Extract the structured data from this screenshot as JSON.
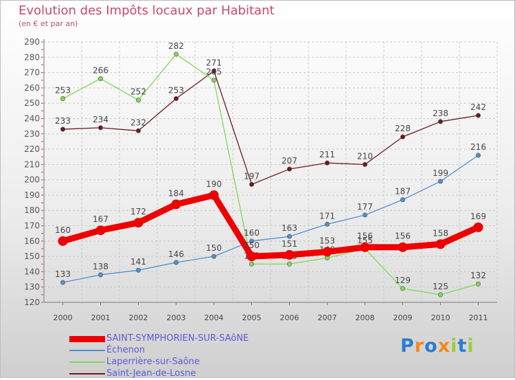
{
  "chart_data": {
    "type": "line",
    "title": "Evolution des Impôts locaux par Habitant",
    "subtitle": "(en € et par an)",
    "xlabel": "",
    "ylabel": "",
    "ylim": [
      120,
      290
    ],
    "yticks": [
      120,
      130,
      140,
      150,
      160,
      170,
      180,
      190,
      200,
      210,
      220,
      230,
      240,
      250,
      260,
      270,
      280,
      290
    ],
    "x": [
      "2000",
      "2001",
      "2002",
      "2003",
      "2004",
      "2005",
      "2006",
      "2007",
      "2008",
      "2009",
      "2010",
      "2011"
    ],
    "series": [
      {
        "name": "SAINT-SYMPHORIEN-SUR-SAôNE",
        "color": "#ee0000",
        "values": [
          160,
          167,
          172,
          184,
          190,
          150,
          151,
          153,
          156,
          156,
          158,
          169
        ]
      },
      {
        "name": "Échenon",
        "color": "#4f8fcf",
        "values": [
          133,
          138,
          141,
          146,
          150,
          160,
          163,
          171,
          177,
          187,
          199,
          216
        ]
      },
      {
        "name": "Laperrière-sur-Saône",
        "color": "#7ed957",
        "values": [
          253,
          266,
          252,
          282,
          265,
          145,
          145,
          149,
          155,
          129,
          125,
          132
        ]
      },
      {
        "name": "Saint-Jean-de-Losne",
        "color": "#6b1a1a",
        "values": [
          233,
          234,
          232,
          253,
          271,
          197,
          207,
          211,
          210,
          228,
          238,
          242
        ]
      }
    ]
  },
  "logo": {
    "text": "Proxiti",
    "letters": [
      "P",
      "r",
      "o",
      "x",
      "i",
      "t",
      "i"
    ],
    "colors": [
      "#2b7bd3",
      "#f08a1c",
      "#2b7bd3",
      "#f08a1c",
      "#9acd32",
      "#2b7bd3",
      "#9acd32"
    ]
  }
}
